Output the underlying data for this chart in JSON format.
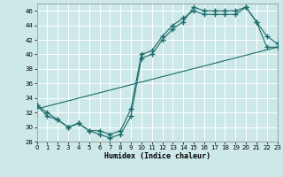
{
  "xlabel": "Humidex (Indice chaleur)",
  "bg_color": "#cde8e8",
  "grid_color": "#b0d4d4",
  "line_color": "#1a6b6b",
  "x_min": 0,
  "x_max": 23,
  "y_min": 28,
  "y_max": 47,
  "yticks": [
    28,
    30,
    32,
    34,
    36,
    38,
    40,
    42,
    44,
    46
  ],
  "xticks": [
    0,
    1,
    2,
    3,
    4,
    5,
    6,
    7,
    8,
    9,
    10,
    11,
    12,
    13,
    14,
    15,
    16,
    17,
    18,
    19,
    20,
    21,
    22,
    23
  ],
  "line1_x": [
    0,
    1,
    2,
    3,
    4,
    5,
    6,
    7,
    8,
    9,
    10,
    11,
    12,
    13,
    14,
    15,
    16,
    17,
    18,
    19,
    20,
    21,
    22,
    23
  ],
  "line1_y": [
    33.0,
    31.5,
    31.0,
    30.0,
    30.5,
    29.5,
    29.0,
    28.5,
    29.0,
    31.5,
    39.5,
    40.0,
    42.0,
    43.5,
    44.5,
    46.5,
    46.0,
    46.0,
    46.0,
    46.0,
    46.5,
    44.5,
    42.5,
    41.5
  ],
  "line2_x": [
    0,
    1,
    2,
    3,
    4,
    5,
    6,
    7,
    8,
    9,
    10,
    11,
    12,
    13,
    14,
    15,
    16,
    17,
    18,
    19,
    20,
    21,
    22,
    23
  ],
  "line2_y": [
    33.0,
    32.0,
    31.0,
    30.0,
    30.5,
    29.5,
    29.5,
    29.0,
    29.5,
    32.5,
    40.0,
    40.5,
    42.5,
    44.0,
    45.0,
    46.0,
    45.5,
    45.5,
    45.5,
    45.5,
    46.5,
    44.5,
    41.0,
    41.0
  ],
  "line3_x": [
    0,
    23
  ],
  "line3_y": [
    32.5,
    41.0
  ]
}
